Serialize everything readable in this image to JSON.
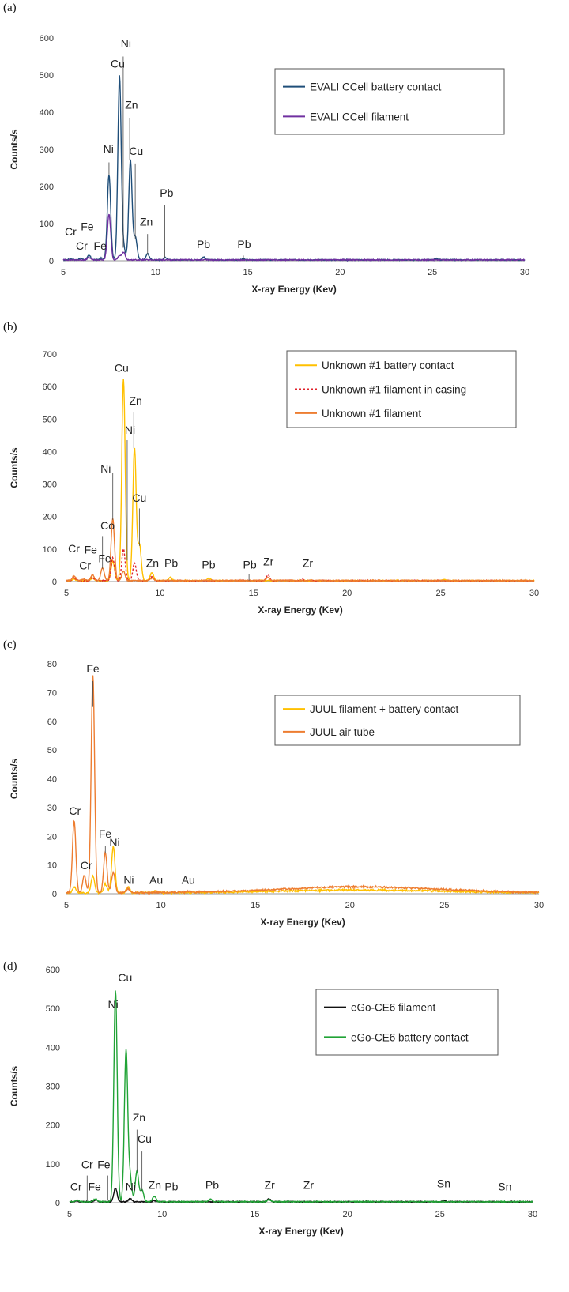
{
  "chart_data": [
    {
      "panel_label": "(a)",
      "type": "line",
      "xlabel": "X-ray Energy (Kev)",
      "ylabel": "Counts/s",
      "xlim": [
        5,
        30
      ],
      "ylim": [
        0,
        600
      ],
      "xticks": [
        5,
        10,
        15,
        20,
        25,
        30
      ],
      "yticks": [
        0,
        100,
        200,
        300,
        400,
        500,
        600
      ],
      "legend_position": "top-right",
      "series": [
        {
          "name": "EVALI CCell battery contact",
          "color": "#1f4e79",
          "dash": "",
          "peaks": [
            [
              5.41,
              3
            ],
            [
              5.95,
              4
            ],
            [
              6.4,
              12
            ],
            [
              7.06,
              5
            ],
            [
              7.48,
              230
            ],
            [
              8.05,
              495
            ],
            [
              8.27,
              30
            ],
            [
              8.64,
              268
            ],
            [
              8.91,
              60
            ],
            [
              9.57,
              16
            ],
            [
              10.55,
              6
            ],
            [
              12.61,
              7
            ],
            [
              14.76,
              2
            ],
            [
              25.2,
              3
            ]
          ]
        },
        {
          "name": "EVALI CCell filament",
          "color": "#7030a0",
          "dash": "",
          "peaks": [
            [
              6.4,
              6
            ],
            [
              7.48,
              123
            ],
            [
              8.27,
              20
            ],
            [
              8.05,
              10
            ]
          ]
        }
      ],
      "annotations": [
        {
          "text": "Ni",
          "x": 8.4,
          "y": 575,
          "lx": 8.25,
          "ly0": 550,
          "ly1": 35
        },
        {
          "text": "Cu",
          "x": 7.95,
          "y": 520,
          "lx": 8.05,
          "ly0": 495,
          "ly1": 495
        },
        {
          "text": "Zn",
          "x": 8.7,
          "y": 410,
          "lx": 8.6,
          "ly0": 385,
          "ly1": 270
        },
        {
          "text": "Cu",
          "x": 8.95,
          "y": 285,
          "lx": 8.9,
          "ly0": 262,
          "ly1": 60
        },
        {
          "text": "Ni",
          "x": 7.45,
          "y": 290,
          "lx": 7.48,
          "ly0": 265,
          "ly1": 230
        },
        {
          "text": "Pb",
          "x": 10.6,
          "y": 172,
          "lx": 10.5,
          "ly0": 150,
          "ly1": 8
        },
        {
          "text": "Zn",
          "x": 9.5,
          "y": 95,
          "lx": 9.57,
          "ly0": 72,
          "ly1": 16
        },
        {
          "text": "Fe",
          "x": 6.3,
          "y": 82,
          "lx": null
        },
        {
          "text": "Cr",
          "x": 5.4,
          "y": 68,
          "lx": null
        },
        {
          "text": "Cr",
          "x": 6.0,
          "y": 30,
          "lx": null
        },
        {
          "text": "Fe",
          "x": 7.0,
          "y": 30,
          "lx": null
        },
        {
          "text": "Pb",
          "x": 12.6,
          "y": 34,
          "lx": null
        },
        {
          "text": "Pb",
          "x": 14.8,
          "y": 34,
          "lx": 14.76,
          "ly0": 14,
          "ly1": 3
        }
      ]
    },
    {
      "panel_label": "(b)",
      "type": "line",
      "xlabel": "X-ray Energy (Kev)",
      "ylabel": "Counts/s",
      "xlim": [
        5,
        30
      ],
      "ylim": [
        0,
        700
      ],
      "xticks": [
        5,
        10,
        15,
        20,
        25,
        30
      ],
      "yticks": [
        0,
        100,
        200,
        300,
        400,
        500,
        600,
        700
      ],
      "legend_position": "top-right",
      "series": [
        {
          "name": "Unknown #1 battery contact",
          "color": "#ffc000",
          "dash": "",
          "peaks": [
            [
              5.41,
              5
            ],
            [
              6.4,
              8
            ],
            [
              7.48,
              60
            ],
            [
              8.05,
              620
            ],
            [
              8.64,
              410
            ],
            [
              8.91,
              110
            ],
            [
              9.57,
              25
            ],
            [
              10.55,
              10
            ],
            [
              12.61,
              8
            ],
            [
              25.2,
              3
            ]
          ]
        },
        {
          "name": "Unknown #1 filament in casing",
          "color": "#e0202a",
          "dash": "3,2",
          "peaks": [
            [
              5.41,
              8
            ],
            [
              6.4,
              10
            ],
            [
              7.48,
              70
            ],
            [
              8.05,
              98
            ],
            [
              8.64,
              55
            ],
            [
              9.57,
              12
            ],
            [
              15.77,
              18
            ],
            [
              17.67,
              4
            ]
          ]
        },
        {
          "name": "Unknown #1 filament",
          "color": "#ed7d31",
          "dash": "",
          "peaks": [
            [
              5.41,
              15
            ],
            [
              5.95,
              5
            ],
            [
              6.4,
              18
            ],
            [
              6.93,
              40
            ],
            [
              7.48,
              190
            ],
            [
              8.05,
              30
            ],
            [
              9.57,
              8
            ],
            [
              15.77,
              10
            ]
          ]
        }
      ],
      "annotations": [
        {
          "text": "Cu",
          "x": 7.95,
          "y": 645,
          "lx": null
        },
        {
          "text": "Zn",
          "x": 8.7,
          "y": 545,
          "lx": 8.6,
          "ly0": 520,
          "ly1": 410
        },
        {
          "text": "Ni",
          "x": 8.4,
          "y": 455,
          "lx": 8.25,
          "ly0": 435,
          "ly1": 65
        },
        {
          "text": "Ni",
          "x": 7.1,
          "y": 335,
          "lx": 7.48,
          "ly0": 335,
          "ly1": 190
        },
        {
          "text": "Cu",
          "x": 8.9,
          "y": 245,
          "lx": 8.9,
          "ly0": 225,
          "ly1": 110
        },
        {
          "text": "Co",
          "x": 7.2,
          "y": 160,
          "lx": 6.93,
          "ly0": 140,
          "ly1": 40
        },
        {
          "text": "Cr",
          "x": 5.4,
          "y": 90,
          "lx": null
        },
        {
          "text": "Fe",
          "x": 6.3,
          "y": 86,
          "lx": null
        },
        {
          "text": "Cr",
          "x": 6.0,
          "y": 38,
          "lx": null
        },
        {
          "text": "Fe",
          "x": 7.05,
          "y": 60,
          "lx": null
        },
        {
          "text": "Zn",
          "x": 9.6,
          "y": 45,
          "lx": null
        },
        {
          "text": "Pb",
          "x": 10.6,
          "y": 45,
          "lx": null
        },
        {
          "text": "Pb",
          "x": 12.6,
          "y": 40,
          "lx": null
        },
        {
          "text": "Pb",
          "x": 14.8,
          "y": 40,
          "lx": 14.76,
          "ly0": 22,
          "ly1": 3
        },
        {
          "text": "Zr",
          "x": 15.8,
          "y": 50,
          "lx": null
        },
        {
          "text": "Zr",
          "x": 17.9,
          "y": 45,
          "lx": null
        }
      ]
    },
    {
      "panel_label": "(c)",
      "type": "line",
      "xlabel": "X-ray Energy (Kev)",
      "ylabel": "Counts/s",
      "xlim": [
        5,
        30
      ],
      "ylim": [
        0,
        80
      ],
      "xticks": [
        5,
        10,
        15,
        20,
        25,
        30
      ],
      "yticks": [
        0,
        10,
        20,
        30,
        40,
        50,
        60,
        70,
        80
      ],
      "legend_position": "top-right",
      "series": [
        {
          "name": "JUUL filament + battery contact",
          "color": "#ffc000",
          "dash": "",
          "peaks": [
            [
              5.41,
              2
            ],
            [
              6.4,
              6
            ],
            [
              7.06,
              3
            ],
            [
              7.48,
              16
            ],
            [
              8.27,
              2
            ],
            [
              9.71,
              0.6
            ]
          ]
        },
        {
          "name": "JUUL air tube",
          "color": "#ed7d31",
          "dash": "",
          "peaks": [
            [
              5.41,
              25
            ],
            [
              5.95,
              6
            ],
            [
              6.4,
              76
            ],
            [
              7.06,
              14
            ],
            [
              7.48,
              7
            ],
            [
              8.27,
              1.5
            ],
            [
              11.44,
              0.4
            ]
          ]
        }
      ],
      "annotations": [
        {
          "text": "Fe",
          "x": 6.4,
          "y": 77,
          "lx": 6.4,
          "ly0": 74,
          "ly1": 65
        },
        {
          "text": "Cr",
          "x": 5.45,
          "y": 27.5,
          "lx": null
        },
        {
          "text": "Fe",
          "x": 7.05,
          "y": 19.5,
          "lx": 7.06,
          "ly0": 16.5,
          "ly1": 14
        },
        {
          "text": "Ni",
          "x": 7.55,
          "y": 16.5,
          "lx": null
        },
        {
          "text": "Cr",
          "x": 6.05,
          "y": 8.5,
          "lx": null
        },
        {
          "text": "Ni",
          "x": 8.3,
          "y": 3.5,
          "lx": null
        },
        {
          "text": "Au",
          "x": 9.75,
          "y": 3.5,
          "lx": null
        },
        {
          "text": "Au",
          "x": 11.45,
          "y": 3.5,
          "lx": null
        }
      ]
    },
    {
      "panel_label": "(d)",
      "type": "line",
      "xlabel": "X-ray Energy (Kev)",
      "ylabel": "Counts/s",
      "xlim": [
        5,
        30
      ],
      "ylim": [
        0,
        600
      ],
      "xticks": [
        5,
        10,
        15,
        20,
        25,
        30
      ],
      "yticks": [
        0,
        100,
        200,
        300,
        400,
        500,
        600
      ],
      "legend_position": "top-right",
      "series": [
        {
          "name": "eGo-CE6 filament",
          "color": "#111111",
          "dash": "",
          "peaks": [
            [
              5.41,
              2
            ],
            [
              6.4,
              5
            ],
            [
              7.48,
              35
            ],
            [
              8.27,
              8
            ],
            [
              9.57,
              3
            ],
            [
              15.77,
              8
            ],
            [
              25.2,
              3
            ]
          ]
        },
        {
          "name": "eGo-CE6 battery contact",
          "color": "#21a336",
          "dash": "",
          "peaks": [
            [
              5.41,
              4
            ],
            [
              6.4,
              8
            ],
            [
              7.48,
              545
            ],
            [
              8.05,
              390
            ],
            [
              8.27,
              60
            ],
            [
              8.64,
              80
            ],
            [
              8.91,
              30
            ],
            [
              9.57,
              14
            ],
            [
              12.61,
              6
            ],
            [
              15.77,
              6
            ]
          ]
        }
      ],
      "annotations": [
        {
          "text": "Cu",
          "x": 8.0,
          "y": 570,
          "lx": 8.05,
          "ly0": 545,
          "ly1": 390
        },
        {
          "text": "Ni",
          "x": 7.35,
          "y": 500,
          "lx": null
        },
        {
          "text": "Zn",
          "x": 8.75,
          "y": 210,
          "lx": 8.64,
          "ly0": 188,
          "ly1": 80
        },
        {
          "text": "Cu",
          "x": 9.05,
          "y": 155,
          "lx": 8.91,
          "ly0": 132,
          "ly1": 30
        },
        {
          "text": "Cr",
          "x": 5.95,
          "y": 88,
          "lx": 5.95,
          "ly0": 70,
          "ly1": 4
        },
        {
          "text": "Fe",
          "x": 6.85,
          "y": 88,
          "lx": 7.06,
          "ly0": 70,
          "ly1": 8
        },
        {
          "text": "Cr",
          "x": 5.35,
          "y": 32,
          "lx": null
        },
        {
          "text": "Fe",
          "x": 6.35,
          "y": 32,
          "lx": null
        },
        {
          "text": "Ni",
          "x": 8.3,
          "y": 32,
          "lx": null
        },
        {
          "text": "Zn",
          "x": 9.6,
          "y": 36,
          "lx": null
        },
        {
          "text": "Pb",
          "x": 10.5,
          "y": 32,
          "lx": null
        },
        {
          "text": "Pb",
          "x": 12.7,
          "y": 36,
          "lx": null
        },
        {
          "text": "Zr",
          "x": 15.8,
          "y": 36,
          "lx": 15.77,
          "ly0": 14,
          "ly1": 8
        },
        {
          "text": "Zr",
          "x": 17.9,
          "y": 36,
          "lx": null
        },
        {
          "text": "Sn",
          "x": 25.2,
          "y": 40,
          "lx": null
        },
        {
          "text": "Sn",
          "x": 28.5,
          "y": 32,
          "lx": null
        }
      ]
    }
  ]
}
